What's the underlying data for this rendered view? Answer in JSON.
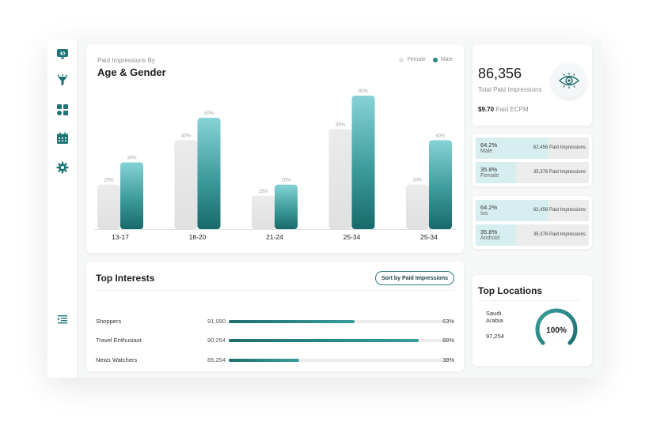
{
  "sidebar": {
    "items": [
      {
        "icon": "dashboard-4d-icon",
        "label": "4D"
      },
      {
        "icon": "funnel-icon"
      },
      {
        "icon": "apps-grid-icon"
      },
      {
        "icon": "calendar-icon"
      },
      {
        "icon": "gear-icon"
      },
      {
        "icon": "menu-collapse-icon"
      }
    ]
  },
  "chart": {
    "subtitle": "Paid Impressions By",
    "title": "Age & Gender",
    "legend": {
      "female": "Female",
      "male": "Male"
    }
  },
  "chart_data": {
    "type": "bar",
    "categories": [
      "13-17",
      "18-20",
      "21-24",
      "25-34",
      "25-34"
    ],
    "series": [
      {
        "name": "Female",
        "values": [
          20,
          40,
          15,
          45,
          20
        ],
        "labels": [
          "20%",
          "40%",
          "15%",
          "45%",
          "20%"
        ],
        "color": "#e6e6e6"
      },
      {
        "name": "Male",
        "values": [
          30,
          50,
          20,
          60,
          40
        ],
        "labels": [
          "30%",
          "50%",
          "20%",
          "60%",
          "40%"
        ],
        "color": "#2a8585"
      }
    ],
    "ylim": [
      0,
      60
    ]
  },
  "interests": {
    "title": "Top Interests",
    "sort_label": "Sort by Paid Impressions",
    "rows": [
      {
        "name": "Shoppers",
        "value": "91,090",
        "pct": "63%",
        "fill": 0.59
      },
      {
        "name": "Travel Enthusiast",
        "value": "90,254",
        "pct": "88%",
        "fill": 0.89
      },
      {
        "name": "News Watchers",
        "value": "85,254",
        "pct": "38%",
        "fill": 0.33
      }
    ]
  },
  "kpi": {
    "value": "86,356",
    "label": "Total Paid Impressions",
    "ecpm_value": "$9.70",
    "ecpm_label": "Paid ECPM"
  },
  "gender_split": [
    {
      "pct": "64.2%",
      "label": "Male",
      "value": "62,456 Paid Impressions",
      "fill": 0.642
    },
    {
      "pct": "35.8%",
      "label": "Female",
      "value": "35,376 Paid Impressions",
      "fill": 0.358
    }
  ],
  "platform_split": [
    {
      "pct": "64.2%",
      "label": "Ios",
      "value": "62,456 Paid Impressions",
      "fill": 0.642
    },
    {
      "pct": "35.8%",
      "label": "Android",
      "value": "35,376 Paid Impressions",
      "fill": 0.358
    }
  ],
  "locations": {
    "title": "Top Locations",
    "name": "Saudi Arabia",
    "value": "97,254",
    "gauge_pct": "100%",
    "gauge_fraction": 1.0
  },
  "colors": {
    "accent": "#2a8585",
    "accent_light": "#d6eef0",
    "female_bar": "#e6e6e6"
  }
}
